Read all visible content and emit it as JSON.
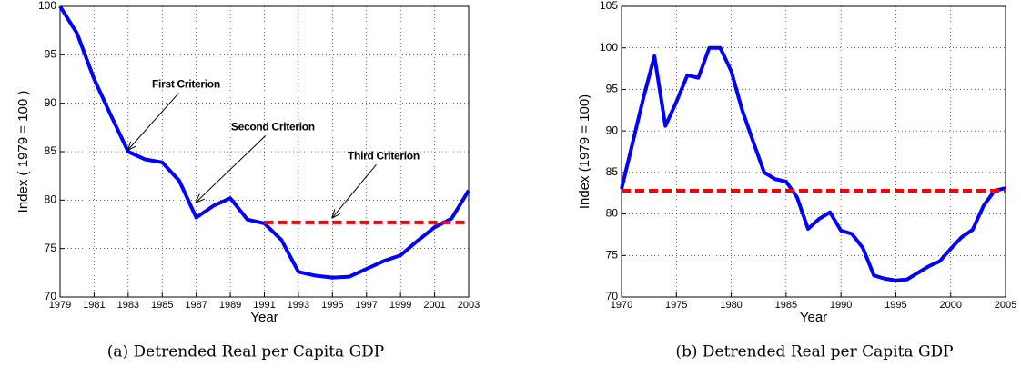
{
  "chart_data": [
    {
      "type": "line",
      "caption": "(a) Detrended Real per Capita GDP",
      "xlabel": "Year",
      "ylabel": "Index  ( 1979 = 100 )",
      "x": [
        1979,
        1980,
        1981,
        1982,
        1983,
        1984,
        1985,
        1986,
        1987,
        1988,
        1989,
        1990,
        1991,
        1992,
        1993,
        1994,
        1995,
        1996,
        1997,
        1998,
        1999,
        2000,
        2001,
        2002,
        2003
      ],
      "series": [
        {
          "color": "#0000ff",
          "values": [
            100,
            97.2,
            92.5,
            88.7,
            85.0,
            84.2,
            83.9,
            82.0,
            78.2,
            79.4,
            80.2,
            78.0,
            77.6,
            75.9,
            72.6,
            72.2,
            72.0,
            72.1,
            72.9,
            73.7,
            74.3,
            75.8,
            77.2,
            78.1,
            81.0
          ]
        }
      ],
      "reference_line": {
        "value": 77.7,
        "x": [
          1991,
          2003
        ],
        "color": "#ff0000",
        "style": "dashed"
      },
      "annotations": [
        {
          "text": "First Criterion",
          "xy": [
            1983,
            85.2
          ],
          "xytext": [
            1986.4,
            91.9
          ]
        },
        {
          "text": "Second Criterion",
          "xy": [
            1987,
            79.8
          ],
          "xytext": [
            1991.5,
            87.5
          ]
        },
        {
          "text": "Third Criterion",
          "xy": [
            1995,
            78.2
          ],
          "xytext": [
            1998.0,
            84.5
          ]
        }
      ],
      "xlim": [
        1979,
        2003
      ],
      "xticks": [
        1979,
        1981,
        1983,
        1985,
        1987,
        1989,
        1991,
        1993,
        1995,
        1997,
        1999,
        2001,
        2003
      ],
      "ylim": [
        70,
        100
      ],
      "yticks": [
        70,
        75,
        80,
        85,
        90,
        95,
        100
      ],
      "grid": true
    },
    {
      "type": "line",
      "caption": "(b) Detrended Real per Capita GDP",
      "xlabel": "Year",
      "ylabel": "Index  (1979 = 100)",
      "x": [
        1970,
        1971,
        1972,
        1973,
        1974,
        1975,
        1976,
        1977,
        1978,
        1979,
        1980,
        1981,
        1982,
        1983,
        1984,
        1985,
        1986,
        1987,
        1988,
        1989,
        1990,
        1991,
        1992,
        1993,
        1994,
        1995,
        1996,
        1997,
        1998,
        1999,
        2000,
        2001,
        2002,
        2003,
        2004,
        2005
      ],
      "series": [
        {
          "color": "#0000ff",
          "values": [
            83,
            88.5,
            94,
            99,
            90.6,
            93.5,
            96.7,
            96.4,
            100,
            100,
            97.2,
            92.5,
            88.7,
            85,
            84.2,
            83.9,
            82,
            78.2,
            79.4,
            80.2,
            78,
            77.6,
            75.9,
            72.6,
            72.2,
            72,
            72.1,
            72.9,
            73.7,
            74.3,
            75.8,
            77.2,
            78.1,
            81,
            82.8,
            83.1
          ]
        }
      ],
      "reference_line": {
        "value": 82.8,
        "x": [
          1970,
          2005
        ],
        "color": "#ff0000",
        "style": "dashed"
      },
      "annotations": [],
      "xlim": [
        1970,
        2005
      ],
      "xticks": [
        1970,
        1975,
        1980,
        1985,
        1990,
        1995,
        2000,
        2005
      ],
      "ylim": [
        70,
        105
      ],
      "yticks": [
        70,
        75,
        80,
        85,
        90,
        95,
        100,
        105
      ],
      "grid": true
    }
  ]
}
